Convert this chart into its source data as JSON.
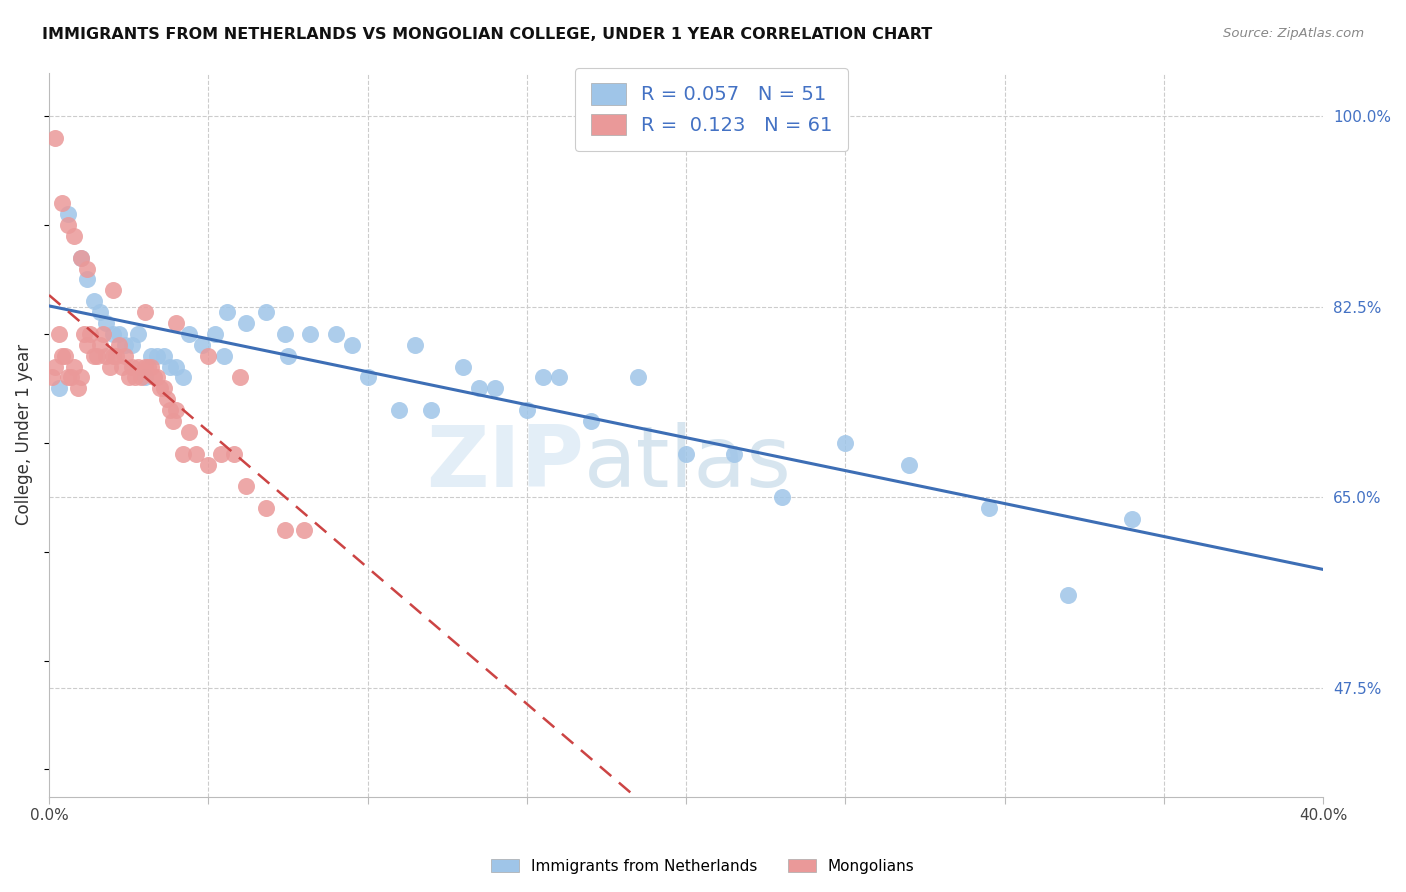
{
  "title": "IMMIGRANTS FROM NETHERLANDS VS MONGOLIAN COLLEGE, UNDER 1 YEAR CORRELATION CHART",
  "source": "Source: ZipAtlas.com",
  "ylabel": "College, Under 1 year",
  "xlim": [
    0.0,
    0.4
  ],
  "ylim": [
    0.375,
    1.04
  ],
  "blue_color": "#9fc5e8",
  "pink_color": "#ea9999",
  "blue_line_color": "#3d6eb5",
  "pink_line_color": "#cc4444",
  "legend_r1": "R = 0.057",
  "legend_n1": "N = 51",
  "legend_r2": "R =  0.123",
  "legend_n2": "N = 61",
  "watermark": "ZIPatlas",
  "ytick_positions": [
    0.475,
    0.65,
    0.825,
    1.0
  ],
  "ytick_labels": [
    "47.5%",
    "65.0%",
    "82.5%",
    "100.0%"
  ],
  "blue_x": [
    0.003,
    0.006,
    0.01,
    0.012,
    0.014,
    0.016,
    0.018,
    0.02,
    0.022,
    0.024,
    0.026,
    0.028,
    0.03,
    0.032,
    0.034,
    0.036,
    0.038,
    0.04,
    0.042,
    0.044,
    0.048,
    0.052,
    0.056,
    0.062,
    0.068,
    0.074,
    0.082,
    0.09,
    0.1,
    0.11,
    0.12,
    0.13,
    0.14,
    0.15,
    0.16,
    0.17,
    0.185,
    0.2,
    0.215,
    0.23,
    0.25,
    0.27,
    0.295,
    0.32,
    0.34,
    0.055,
    0.075,
    0.095,
    0.115,
    0.135,
    0.155
  ],
  "blue_y": [
    0.75,
    0.91,
    0.87,
    0.85,
    0.83,
    0.82,
    0.81,
    0.8,
    0.8,
    0.79,
    0.79,
    0.8,
    0.76,
    0.78,
    0.78,
    0.78,
    0.77,
    0.77,
    0.76,
    0.8,
    0.79,
    0.8,
    0.82,
    0.81,
    0.82,
    0.8,
    0.8,
    0.8,
    0.76,
    0.73,
    0.73,
    0.77,
    0.75,
    0.73,
    0.76,
    0.72,
    0.76,
    0.69,
    0.69,
    0.65,
    0.7,
    0.68,
    0.64,
    0.56,
    0.63,
    0.78,
    0.78,
    0.79,
    0.79,
    0.75,
    0.76
  ],
  "pink_x": [
    0.001,
    0.002,
    0.003,
    0.004,
    0.005,
    0.006,
    0.007,
    0.008,
    0.009,
    0.01,
    0.011,
    0.012,
    0.013,
    0.014,
    0.015,
    0.016,
    0.017,
    0.018,
    0.019,
    0.02,
    0.021,
    0.022,
    0.023,
    0.024,
    0.025,
    0.026,
    0.027,
    0.028,
    0.029,
    0.03,
    0.031,
    0.032,
    0.033,
    0.034,
    0.035,
    0.036,
    0.037,
    0.038,
    0.039,
    0.04,
    0.042,
    0.044,
    0.046,
    0.05,
    0.054,
    0.058,
    0.062,
    0.068,
    0.074,
    0.08,
    0.002,
    0.004,
    0.006,
    0.008,
    0.01,
    0.012,
    0.02,
    0.03,
    0.04,
    0.05,
    0.06
  ],
  "pink_y": [
    0.76,
    0.77,
    0.8,
    0.78,
    0.78,
    0.76,
    0.76,
    0.77,
    0.75,
    0.76,
    0.8,
    0.79,
    0.8,
    0.78,
    0.78,
    0.79,
    0.8,
    0.78,
    0.77,
    0.78,
    0.78,
    0.79,
    0.77,
    0.78,
    0.76,
    0.77,
    0.76,
    0.77,
    0.76,
    0.77,
    0.77,
    0.77,
    0.76,
    0.76,
    0.75,
    0.75,
    0.74,
    0.73,
    0.72,
    0.73,
    0.69,
    0.71,
    0.69,
    0.68,
    0.69,
    0.69,
    0.66,
    0.64,
    0.62,
    0.62,
    0.98,
    0.92,
    0.9,
    0.89,
    0.87,
    0.86,
    0.84,
    0.82,
    0.81,
    0.78,
    0.76
  ]
}
